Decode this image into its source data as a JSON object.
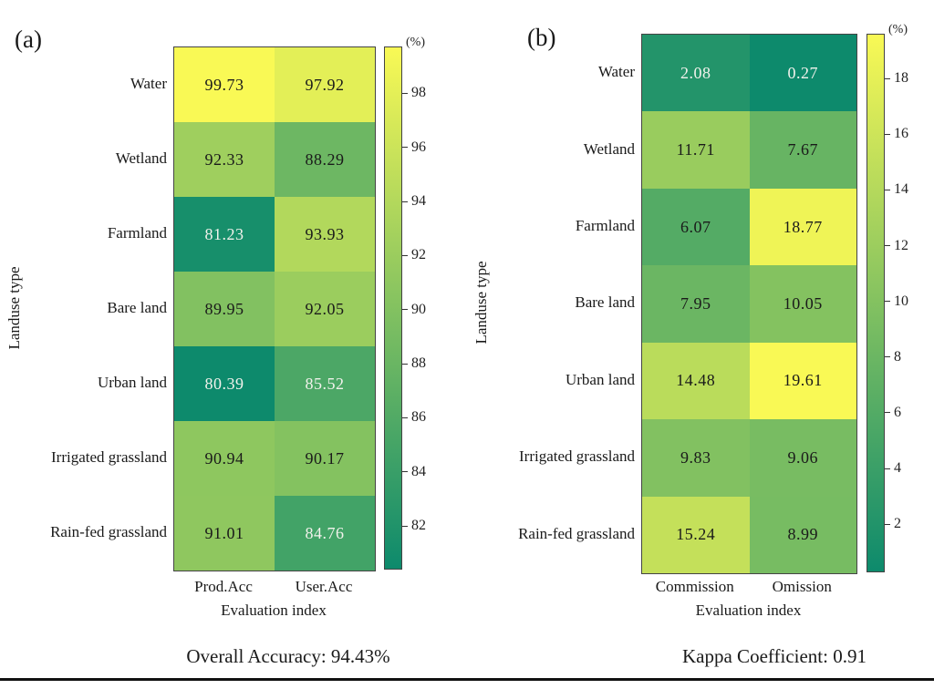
{
  "figure": {
    "background": "#ffffff",
    "colormap_low": "#0d8a6c",
    "colormap_high": "#f9f955"
  },
  "chart_data": [
    {
      "type": "heatmap",
      "panel_tag": "(a)",
      "xlabel": "Evaluation index",
      "ylabel": "Landuse type",
      "caption": "Overall Accuracy: 94.43%",
      "colorbar_unit": "(%)",
      "columns": [
        "Prod.Acc",
        "User.Acc"
      ],
      "rows": [
        "Water",
        "Wetland",
        "Farmland",
        "Bare land",
        "Urban land",
        "Irrigated grassland",
        "Rain-fed grassland"
      ],
      "values": [
        [
          99.73,
          97.92
        ],
        [
          92.33,
          88.29
        ],
        [
          81.23,
          93.93
        ],
        [
          89.95,
          92.05
        ],
        [
          80.39,
          85.52
        ],
        [
          90.94,
          90.17
        ],
        [
          91.01,
          84.76
        ]
      ],
      "vmin": 80.39,
      "vmax": 99.73,
      "colorbar_ticks": [
        98,
        96,
        94,
        92,
        90,
        88,
        86,
        84,
        82
      ],
      "colormap": {
        "low": "#0d8a6c",
        "high": "#f9f955"
      },
      "legend_position": "right",
      "grid": false
    },
    {
      "type": "heatmap",
      "panel_tag": "(b)",
      "xlabel": "Evaluation index",
      "ylabel": "Landuse type",
      "caption": "Kappa Coefficient: 0.91",
      "colorbar_unit": "(%)",
      "columns": [
        "Commission",
        "Omission"
      ],
      "rows": [
        "Water",
        "Wetland",
        "Farmland",
        "Bare land",
        "Urban land",
        "Irrigated grassland",
        "Rain-fed grassland"
      ],
      "values": [
        [
          2.08,
          0.27
        ],
        [
          11.71,
          7.67
        ],
        [
          6.07,
          18.77
        ],
        [
          7.95,
          10.05
        ],
        [
          14.48,
          19.61
        ],
        [
          9.83,
          9.06
        ],
        [
          15.24,
          8.99
        ]
      ],
      "vmin": 0.27,
      "vmax": 19.61,
      "colorbar_ticks": [
        18,
        16,
        14,
        12,
        10,
        8,
        6,
        4,
        2
      ],
      "colormap": {
        "low": "#0d8a6c",
        "high": "#f9f955"
      },
      "legend_position": "right",
      "grid": false
    }
  ]
}
